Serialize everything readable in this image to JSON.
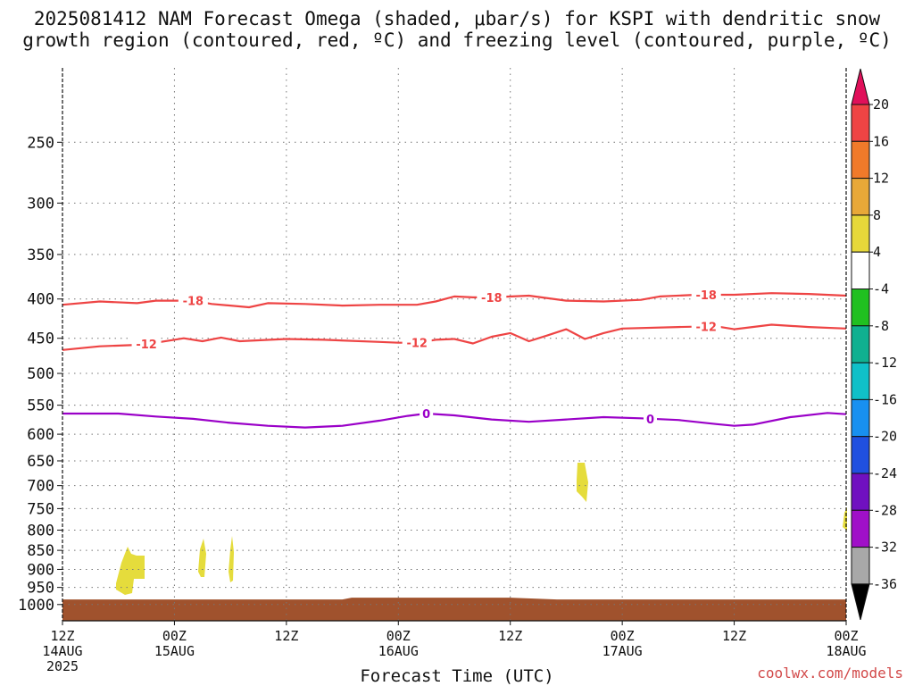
{
  "title": {
    "line1": "2025081412 NAM Forecast Omega (shaded, μbar/s) for KSPI with dendritic snow",
    "line2": "growth region (contoured, red, ºC) and freezing level (contoured, purple, ºC)"
  },
  "xlabel": "Forecast Time (UTC)",
  "credit": "coolwx.com/models",
  "chart_data": {
    "type": "heatmap",
    "y_axis": {
      "label": "",
      "units": "hPa",
      "ticks": [
        250,
        300,
        350,
        400,
        450,
        500,
        550,
        600,
        650,
        700,
        750,
        800,
        850,
        900,
        950,
        1000
      ],
      "range": [
        1050,
        200
      ],
      "scale": "log-pressure"
    },
    "x_axis": {
      "ticks": [
        {
          "hour": 0,
          "lines": [
            "12Z",
            "14AUG",
            "2025"
          ]
        },
        {
          "hour": 12,
          "lines": [
            "00Z",
            "15AUG"
          ]
        },
        {
          "hour": 24,
          "lines": [
            "12Z"
          ]
        },
        {
          "hour": 36,
          "lines": [
            "00Z",
            "16AUG"
          ]
        },
        {
          "hour": 48,
          "lines": [
            "12Z"
          ]
        },
        {
          "hour": 60,
          "lines": [
            "00Z",
            "17AUG"
          ]
        },
        {
          "hour": 72,
          "lines": [
            "12Z"
          ]
        },
        {
          "hour": 84,
          "lines": [
            "00Z",
            "18AUG"
          ]
        }
      ],
      "range_hours": [
        0,
        84
      ]
    },
    "grid": true,
    "contours": [
      {
        "name": "-18",
        "color": "#ee4444",
        "labels_at_hours": [
          14,
          46,
          69
        ],
        "points": [
          [
            0,
            407
          ],
          [
            4,
            403
          ],
          [
            8,
            405
          ],
          [
            10,
            402
          ],
          [
            12,
            402
          ],
          [
            14,
            402
          ],
          [
            16,
            406
          ],
          [
            20,
            410
          ],
          [
            22,
            405
          ],
          [
            26,
            406
          ],
          [
            30,
            408
          ],
          [
            34,
            407
          ],
          [
            38,
            407
          ],
          [
            40,
            403
          ],
          [
            42,
            397
          ],
          [
            44,
            398
          ],
          [
            46,
            398
          ],
          [
            50,
            396
          ],
          [
            54,
            402
          ],
          [
            58,
            403
          ],
          [
            62,
            401
          ],
          [
            64,
            397
          ],
          [
            68,
            395
          ],
          [
            72,
            395
          ],
          [
            76,
            393
          ],
          [
            80,
            394
          ],
          [
            84,
            396
          ]
        ]
      },
      {
        "name": "-12",
        "color": "#ee4444",
        "labels_at_hours": [
          9,
          38,
          69
        ],
        "points": [
          [
            0,
            466
          ],
          [
            4,
            461
          ],
          [
            8,
            459
          ],
          [
            10,
            456
          ],
          [
            13,
            450
          ],
          [
            15,
            454
          ],
          [
            17,
            449
          ],
          [
            19,
            454
          ],
          [
            24,
            451
          ],
          [
            28,
            452
          ],
          [
            34,
            455
          ],
          [
            36,
            456
          ],
          [
            38,
            456
          ],
          [
            40,
            452
          ],
          [
            42,
            451
          ],
          [
            44,
            457
          ],
          [
            46,
            448
          ],
          [
            48,
            443
          ],
          [
            50,
            454
          ],
          [
            52,
            446
          ],
          [
            54,
            438
          ],
          [
            56,
            451
          ],
          [
            58,
            443
          ],
          [
            60,
            437
          ],
          [
            66,
            435
          ],
          [
            70,
            434
          ],
          [
            72,
            438
          ],
          [
            76,
            432
          ],
          [
            80,
            435
          ],
          [
            84,
            437
          ]
        ]
      },
      {
        "name": "0",
        "color": "#9a00c8",
        "labels_at_hours": [
          39,
          63
        ],
        "points": [
          [
            0,
            564
          ],
          [
            6,
            564
          ],
          [
            10,
            569
          ],
          [
            14,
            573
          ],
          [
            18,
            580
          ],
          [
            22,
            585
          ],
          [
            26,
            588
          ],
          [
            30,
            585
          ],
          [
            34,
            576
          ],
          [
            37,
            568
          ],
          [
            39,
            564
          ],
          [
            42,
            567
          ],
          [
            46,
            574
          ],
          [
            50,
            578
          ],
          [
            54,
            574
          ],
          [
            58,
            570
          ],
          [
            62,
            572
          ],
          [
            66,
            575
          ],
          [
            70,
            582
          ],
          [
            72,
            585
          ],
          [
            74,
            583
          ],
          [
            78,
            570
          ],
          [
            82,
            563
          ],
          [
            84,
            565
          ]
        ]
      }
    ],
    "shaded_regions": [
      {
        "name": "omega 4 to 8",
        "color": "#e5dc3c",
        "value_range": [
          4,
          8
        ]
      }
    ],
    "colorbar": {
      "labels": [
        "20",
        "16",
        "12",
        "8",
        "4",
        "-4",
        "-8",
        "-12",
        "-16",
        "-20",
        "-24",
        "-28",
        "-32",
        "-36"
      ],
      "colors": [
        "#e0105a",
        "#ef4444",
        "#f07a2a",
        "#e8a838",
        "#e6d83a",
        "#ffffff",
        "#20c020",
        "#10b090",
        "#10c0c8",
        "#1890f0",
        "#2050e0",
        "#7010c0",
        "#a010c8",
        "#a8a8a8",
        "#000000"
      ]
    },
    "ground_color": "#a0522d"
  }
}
